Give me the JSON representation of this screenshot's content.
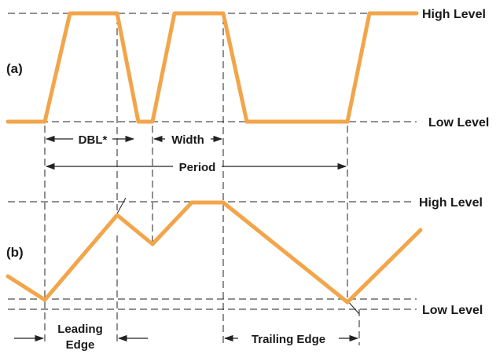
{
  "diagram": {
    "part_a_label": "(a)",
    "part_b_label": "(b)",
    "high_level_a": "High Level",
    "low_level_a": "Low Level",
    "high_level_b": "High Level",
    "low_level_b": "Low Level",
    "dbl_label": "DBL*",
    "width_label": "Width",
    "period_label": "Period",
    "leading_edge_line1": "Leading",
    "leading_edge_line2": "Edge",
    "trailing_edge_label": "Trailing Edge"
  },
  "colors": {
    "waveform": "#f2a54a",
    "line": "#222222",
    "text": "#1a1a1a",
    "background": "#ffffff"
  }
}
